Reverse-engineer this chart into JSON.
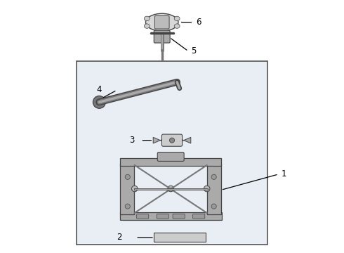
{
  "white": "#ffffff",
  "black": "#000000",
  "dark_gray": "#444444",
  "light_gray": "#aaaaaa",
  "med_gray": "#777777",
  "box_bg": "#e8eef4",
  "box_edge": "#555555",
  "figsize": [
    4.9,
    3.6
  ],
  "dpi": 100
}
